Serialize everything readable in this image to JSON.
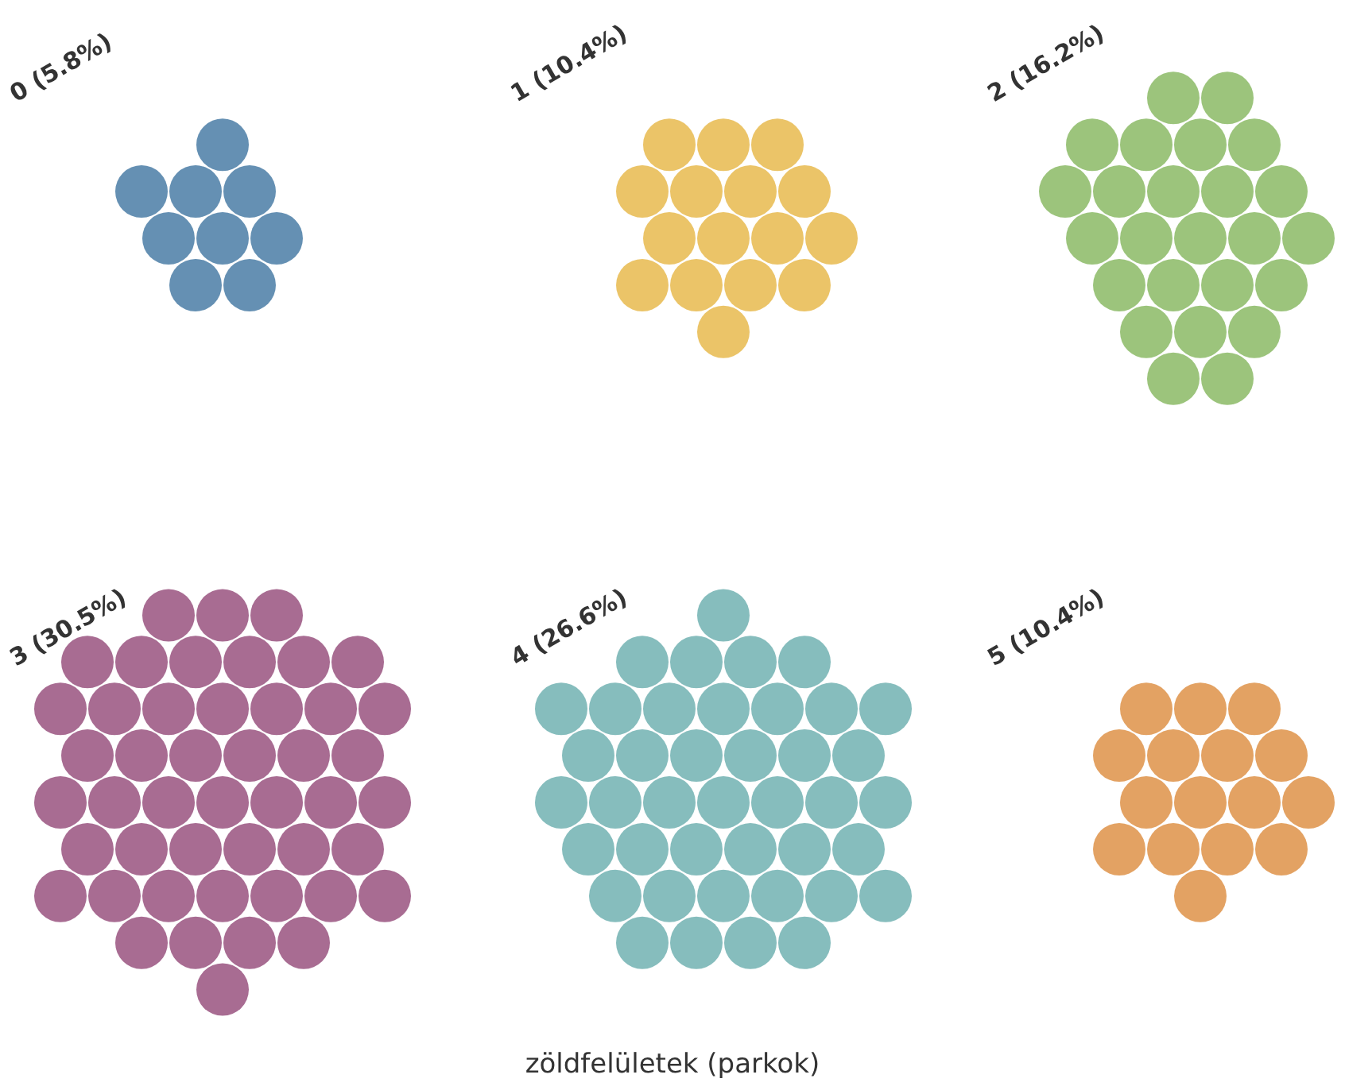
{
  "chart_data": {
    "type": "other",
    "xlabel": "zöldfelületek (parkok)",
    "categories": [
      "0",
      "1",
      "2",
      "3",
      "4",
      "5"
    ],
    "values": [
      5.8,
      10.4,
      16.2,
      30.5,
      26.6,
      10.4
    ],
    "value_labels": [
      "(5.8%)",
      "(10.4%)",
      "(16.2%)",
      "(30.5%)",
      "(26.6%)",
      "(10.4%)"
    ],
    "colors": [
      "#6590b3",
      "#ebc468",
      "#9cc47c",
      "#a86c92",
      "#86bdbd",
      "#e3a263"
    ]
  }
}
